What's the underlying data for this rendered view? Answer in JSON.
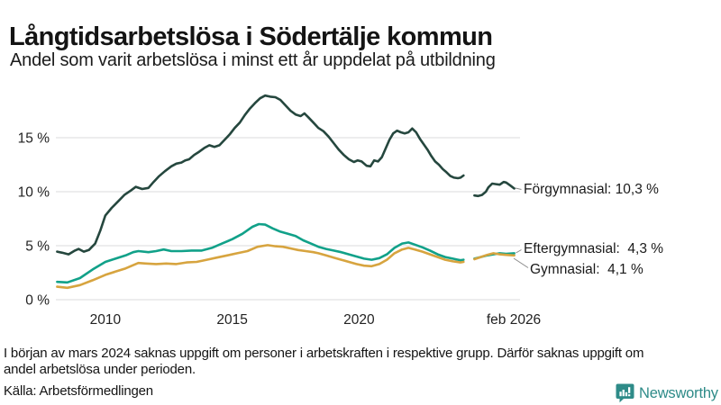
{
  "header": {
    "title": "Långtidsarbetslösa i Södertälje kommun",
    "subtitle": "Andel som varit arbetslösa i minst ett år uppdelat på utbildning"
  },
  "chart_data": {
    "type": "line",
    "title": "Långtidsarbetslösa i Södertälje kommun",
    "subtitle": "Andel som varit arbetslösa i minst ett år uppdelat på utbildning",
    "unit": "%",
    "grid": true,
    "grid_color": "#e2e2e4",
    "axis_text_color": "#222222",
    "note": "Data gap during 2024 (uppgift saknas från början av mars 2024)",
    "x_axis": {
      "range": [
        2008.05,
        2026.17
      ],
      "ticks": [
        {
          "year": 2010,
          "label": "2010"
        },
        {
          "year": 2015,
          "label": "2015"
        },
        {
          "year": 2020,
          "label": "2020"
        },
        {
          "year": 2026.1,
          "label": "feb 2026"
        }
      ]
    },
    "y_axis": {
      "range": [
        0,
        19.5
      ],
      "ticks": [
        {
          "value": 0,
          "label": "0 %"
        },
        {
          "value": 5,
          "label": "5 %"
        },
        {
          "value": 10,
          "label": "10 %"
        },
        {
          "value": 15,
          "label": "15 %"
        }
      ]
    },
    "series": [
      {
        "name": "Förgymnasial",
        "color": "#25473e",
        "end_value": "10,3 %",
        "end_label": "Förgymnasial: 10,3 %",
        "segments": [
          [
            [
              2008.1,
              4.45
            ],
            [
              2008.3,
              4.35
            ],
            [
              2008.55,
              4.2
            ],
            [
              2008.8,
              4.55
            ],
            [
              2008.95,
              4.7
            ],
            [
              2009.15,
              4.45
            ],
            [
              2009.35,
              4.6
            ],
            [
              2009.6,
              5.2
            ],
            [
              2009.8,
              6.4
            ],
            [
              2010.0,
              7.8
            ],
            [
              2010.25,
              8.5
            ],
            [
              2010.5,
              9.1
            ],
            [
              2010.75,
              9.7
            ],
            [
              2011.0,
              10.1
            ],
            [
              2011.2,
              10.45
            ],
            [
              2011.45,
              10.25
            ],
            [
              2011.7,
              10.35
            ],
            [
              2011.9,
              10.9
            ],
            [
              2012.1,
              11.4
            ],
            [
              2012.35,
              11.9
            ],
            [
              2012.6,
              12.35
            ],
            [
              2012.8,
              12.6
            ],
            [
              2013.0,
              12.7
            ],
            [
              2013.15,
              12.9
            ],
            [
              2013.3,
              13.0
            ],
            [
              2013.5,
              13.4
            ],
            [
              2013.7,
              13.7
            ],
            [
              2013.9,
              14.05
            ],
            [
              2014.1,
              14.3
            ],
            [
              2014.3,
              14.15
            ],
            [
              2014.5,
              14.3
            ],
            [
              2014.7,
              14.8
            ],
            [
              2014.9,
              15.3
            ],
            [
              2015.1,
              15.9
            ],
            [
              2015.3,
              16.4
            ],
            [
              2015.5,
              17.1
            ],
            [
              2015.7,
              17.7
            ],
            [
              2015.9,
              18.2
            ],
            [
              2016.1,
              18.65
            ],
            [
              2016.3,
              18.9
            ],
            [
              2016.5,
              18.8
            ],
            [
              2016.7,
              18.75
            ],
            [
              2016.9,
              18.5
            ],
            [
              2017.1,
              18.0
            ],
            [
              2017.3,
              17.5
            ],
            [
              2017.5,
              17.15
            ],
            [
              2017.7,
              17.0
            ],
            [
              2017.85,
              17.25
            ],
            [
              2018.0,
              16.9
            ],
            [
              2018.2,
              16.4
            ],
            [
              2018.4,
              15.9
            ],
            [
              2018.6,
              15.6
            ],
            [
              2018.8,
              15.1
            ],
            [
              2019.0,
              14.5
            ],
            [
              2019.2,
              13.9
            ],
            [
              2019.4,
              13.4
            ],
            [
              2019.6,
              13.0
            ],
            [
              2019.8,
              12.75
            ],
            [
              2019.95,
              12.9
            ],
            [
              2020.1,
              12.8
            ],
            [
              2020.3,
              12.4
            ],
            [
              2020.45,
              12.35
            ],
            [
              2020.6,
              12.9
            ],
            [
              2020.75,
              12.8
            ],
            [
              2020.9,
              13.2
            ],
            [
              2021.05,
              14.0
            ],
            [
              2021.2,
              14.8
            ],
            [
              2021.35,
              15.4
            ],
            [
              2021.5,
              15.65
            ],
            [
              2021.65,
              15.5
            ],
            [
              2021.8,
              15.4
            ],
            [
              2021.95,
              15.5
            ],
            [
              2022.1,
              15.85
            ],
            [
              2022.25,
              15.5
            ],
            [
              2022.4,
              14.9
            ],
            [
              2022.55,
              14.4
            ],
            [
              2022.7,
              13.9
            ],
            [
              2022.85,
              13.3
            ],
            [
              2023.0,
              12.8
            ],
            [
              2023.15,
              12.5
            ],
            [
              2023.3,
              12.1
            ],
            [
              2023.45,
              11.8
            ],
            [
              2023.6,
              11.45
            ],
            [
              2023.75,
              11.3
            ],
            [
              2023.9,
              11.25
            ],
            [
              2024.0,
              11.3
            ],
            [
              2024.12,
              11.5
            ]
          ],
          [
            [
              2024.55,
              9.65
            ],
            [
              2024.7,
              9.6
            ],
            [
              2024.85,
              9.7
            ],
            [
              2025.0,
              10.0
            ],
            [
              2025.1,
              10.4
            ],
            [
              2025.25,
              10.75
            ],
            [
              2025.4,
              10.7
            ],
            [
              2025.55,
              10.65
            ],
            [
              2025.7,
              10.9
            ],
            [
              2025.8,
              10.85
            ],
            [
              2025.95,
              10.6
            ],
            [
              2026.12,
              10.3
            ]
          ]
        ]
      },
      {
        "name": "Eftergymnasial",
        "color": "#11a189",
        "end_value": "4,3 %",
        "end_label": "Eftergymnasial:  4,3 %",
        "segments": [
          [
            [
              2008.1,
              1.65
            ],
            [
              2008.5,
              1.6
            ],
            [
              2009.0,
              2.0
            ],
            [
              2009.5,
              2.8
            ],
            [
              2010.0,
              3.5
            ],
            [
              2010.4,
              3.8
            ],
            [
              2010.8,
              4.1
            ],
            [
              2011.1,
              4.4
            ],
            [
              2011.3,
              4.5
            ],
            [
              2011.7,
              4.4
            ],
            [
              2012.0,
              4.5
            ],
            [
              2012.3,
              4.65
            ],
            [
              2012.6,
              4.5
            ],
            [
              2013.0,
              4.5
            ],
            [
              2013.4,
              4.55
            ],
            [
              2013.8,
              4.55
            ],
            [
              2014.2,
              4.8
            ],
            [
              2014.6,
              5.2
            ],
            [
              2015.0,
              5.6
            ],
            [
              2015.4,
              6.1
            ],
            [
              2015.8,
              6.75
            ],
            [
              2016.05,
              7.0
            ],
            [
              2016.3,
              6.95
            ],
            [
              2016.6,
              6.6
            ],
            [
              2016.9,
              6.3
            ],
            [
              2017.2,
              6.1
            ],
            [
              2017.5,
              5.9
            ],
            [
              2017.8,
              5.5
            ],
            [
              2018.1,
              5.2
            ],
            [
              2018.4,
              4.9
            ],
            [
              2018.7,
              4.7
            ],
            [
              2019.0,
              4.55
            ],
            [
              2019.3,
              4.4
            ],
            [
              2019.6,
              4.2
            ],
            [
              2019.9,
              4.0
            ],
            [
              2020.2,
              3.8
            ],
            [
              2020.5,
              3.7
            ],
            [
              2020.8,
              3.85
            ],
            [
              2021.1,
              4.2
            ],
            [
              2021.4,
              4.8
            ],
            [
              2021.7,
              5.2
            ],
            [
              2021.95,
              5.3
            ],
            [
              2022.2,
              5.1
            ],
            [
              2022.5,
              4.85
            ],
            [
              2022.8,
              4.55
            ],
            [
              2023.1,
              4.2
            ],
            [
              2023.4,
              3.95
            ],
            [
              2023.7,
              3.8
            ],
            [
              2024.0,
              3.65
            ],
            [
              2024.12,
              3.7
            ]
          ],
          [
            [
              2024.55,
              3.8
            ],
            [
              2024.8,
              3.95
            ],
            [
              2025.05,
              4.1
            ],
            [
              2025.3,
              4.2
            ],
            [
              2025.55,
              4.3
            ],
            [
              2025.8,
              4.25
            ],
            [
              2026.12,
              4.3
            ]
          ]
        ]
      },
      {
        "name": "Gymnasial",
        "color": "#d7a43f",
        "end_value": "4,1 %",
        "end_label": "Gymnasial:  4,1 %",
        "segments": [
          [
            [
              2008.1,
              1.2
            ],
            [
              2008.5,
              1.1
            ],
            [
              2009.0,
              1.35
            ],
            [
              2009.5,
              1.8
            ],
            [
              2010.0,
              2.3
            ],
            [
              2010.4,
              2.6
            ],
            [
              2010.8,
              2.9
            ],
            [
              2011.3,
              3.4
            ],
            [
              2011.6,
              3.35
            ],
            [
              2012.0,
              3.3
            ],
            [
              2012.4,
              3.35
            ],
            [
              2012.8,
              3.3
            ],
            [
              2013.2,
              3.45
            ],
            [
              2013.6,
              3.5
            ],
            [
              2014.0,
              3.7
            ],
            [
              2014.4,
              3.9
            ],
            [
              2014.8,
              4.1
            ],
            [
              2015.2,
              4.3
            ],
            [
              2015.6,
              4.5
            ],
            [
              2016.0,
              4.9
            ],
            [
              2016.4,
              5.05
            ],
            [
              2016.7,
              4.95
            ],
            [
              2017.0,
              4.9
            ],
            [
              2017.3,
              4.75
            ],
            [
              2017.6,
              4.6
            ],
            [
              2017.9,
              4.5
            ],
            [
              2018.2,
              4.4
            ],
            [
              2018.4,
              4.3
            ],
            [
              2018.7,
              4.1
            ],
            [
              2019.0,
              3.9
            ],
            [
              2019.3,
              3.7
            ],
            [
              2019.6,
              3.5
            ],
            [
              2019.9,
              3.3
            ],
            [
              2020.2,
              3.15
            ],
            [
              2020.5,
              3.1
            ],
            [
              2020.8,
              3.3
            ],
            [
              2021.1,
              3.7
            ],
            [
              2021.4,
              4.3
            ],
            [
              2021.7,
              4.65
            ],
            [
              2021.95,
              4.8
            ],
            [
              2022.2,
              4.65
            ],
            [
              2022.5,
              4.45
            ],
            [
              2022.8,
              4.2
            ],
            [
              2023.1,
              3.95
            ],
            [
              2023.4,
              3.7
            ],
            [
              2023.7,
              3.55
            ],
            [
              2024.0,
              3.45
            ],
            [
              2024.12,
              3.5
            ]
          ],
          [
            [
              2024.55,
              3.75
            ],
            [
              2024.8,
              3.95
            ],
            [
              2025.05,
              4.15
            ],
            [
              2025.3,
              4.3
            ],
            [
              2025.55,
              4.2
            ],
            [
              2025.8,
              4.15
            ],
            [
              2026.12,
              4.1
            ]
          ]
        ]
      }
    ]
  },
  "footer": {
    "note": "I början av mars 2024 saknas uppgift om personer i arbetskraften i respektive grupp. Därför saknas uppgift om andel arbetslösa under perioden.",
    "note_lines": [
      "I början av mars 2024 saknas uppgift om personer i arbetskraften i respektive grupp. Därför saknas uppgift om",
      "andel arbetslösa under perioden."
    ],
    "source": "Källa: Arbetsförmedlingen",
    "brand": "Newsworthy",
    "brand_color": "#2e8b88"
  }
}
